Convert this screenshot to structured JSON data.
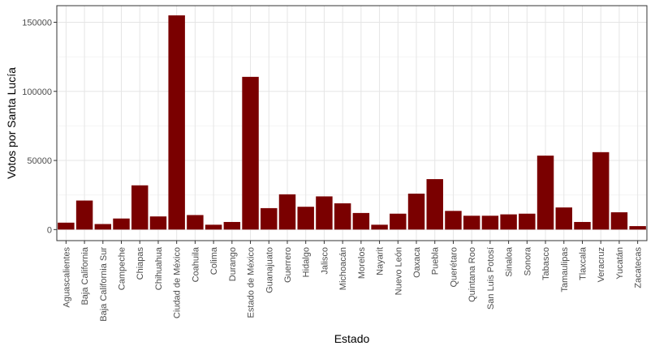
{
  "chart_data": {
    "type": "bar",
    "xlabel": "Estado",
    "ylabel": "Votos por Santa Lucía",
    "ylim": [
      -8000,
      162000
    ],
    "yticks": [
      0,
      50000,
      100000,
      150000
    ],
    "ytick_labels": [
      "0",
      "50000",
      "100000",
      "150000"
    ],
    "grid": true,
    "categories": [
      "Aguascalientes",
      "Baja California",
      "Baja California Sur",
      "Campeche",
      "Chiapas",
      "Chihuahua",
      "Ciudad de México",
      "Coahuila",
      "Colima",
      "Durango",
      "Estado de México",
      "Guanajuato",
      "Guerrero",
      "Hidalgo",
      "Jalisco",
      "Michoacán",
      "Morelos",
      "Nayarit",
      "Nuevo León",
      "Oaxaca",
      "Puebla",
      "Querétaro",
      "Quintana Roo",
      "San Luis Potosí",
      "Sinaloa",
      "Sonora",
      "Tabasco",
      "Tamaulipas",
      "Tlaxcala",
      "Veracruz",
      "Yucatán",
      "Zacatecas"
    ],
    "values": [
      5000,
      21000,
      4000,
      8000,
      32000,
      9500,
      155000,
      10500,
      3500,
      5500,
      110500,
      15500,
      25500,
      16500,
      24000,
      19000,
      12000,
      3500,
      11500,
      26000,
      36500,
      13500,
      10000,
      10000,
      11000,
      11500,
      53500,
      16000,
      5500,
      56000,
      12500,
      2500
    ]
  },
  "colors": {
    "bar": "#7a0000",
    "grid_major": "#e5e5e5",
    "grid_minor": "#f2f2f2",
    "panel_border": "#333333",
    "tick_text": "#4d4d4d"
  }
}
